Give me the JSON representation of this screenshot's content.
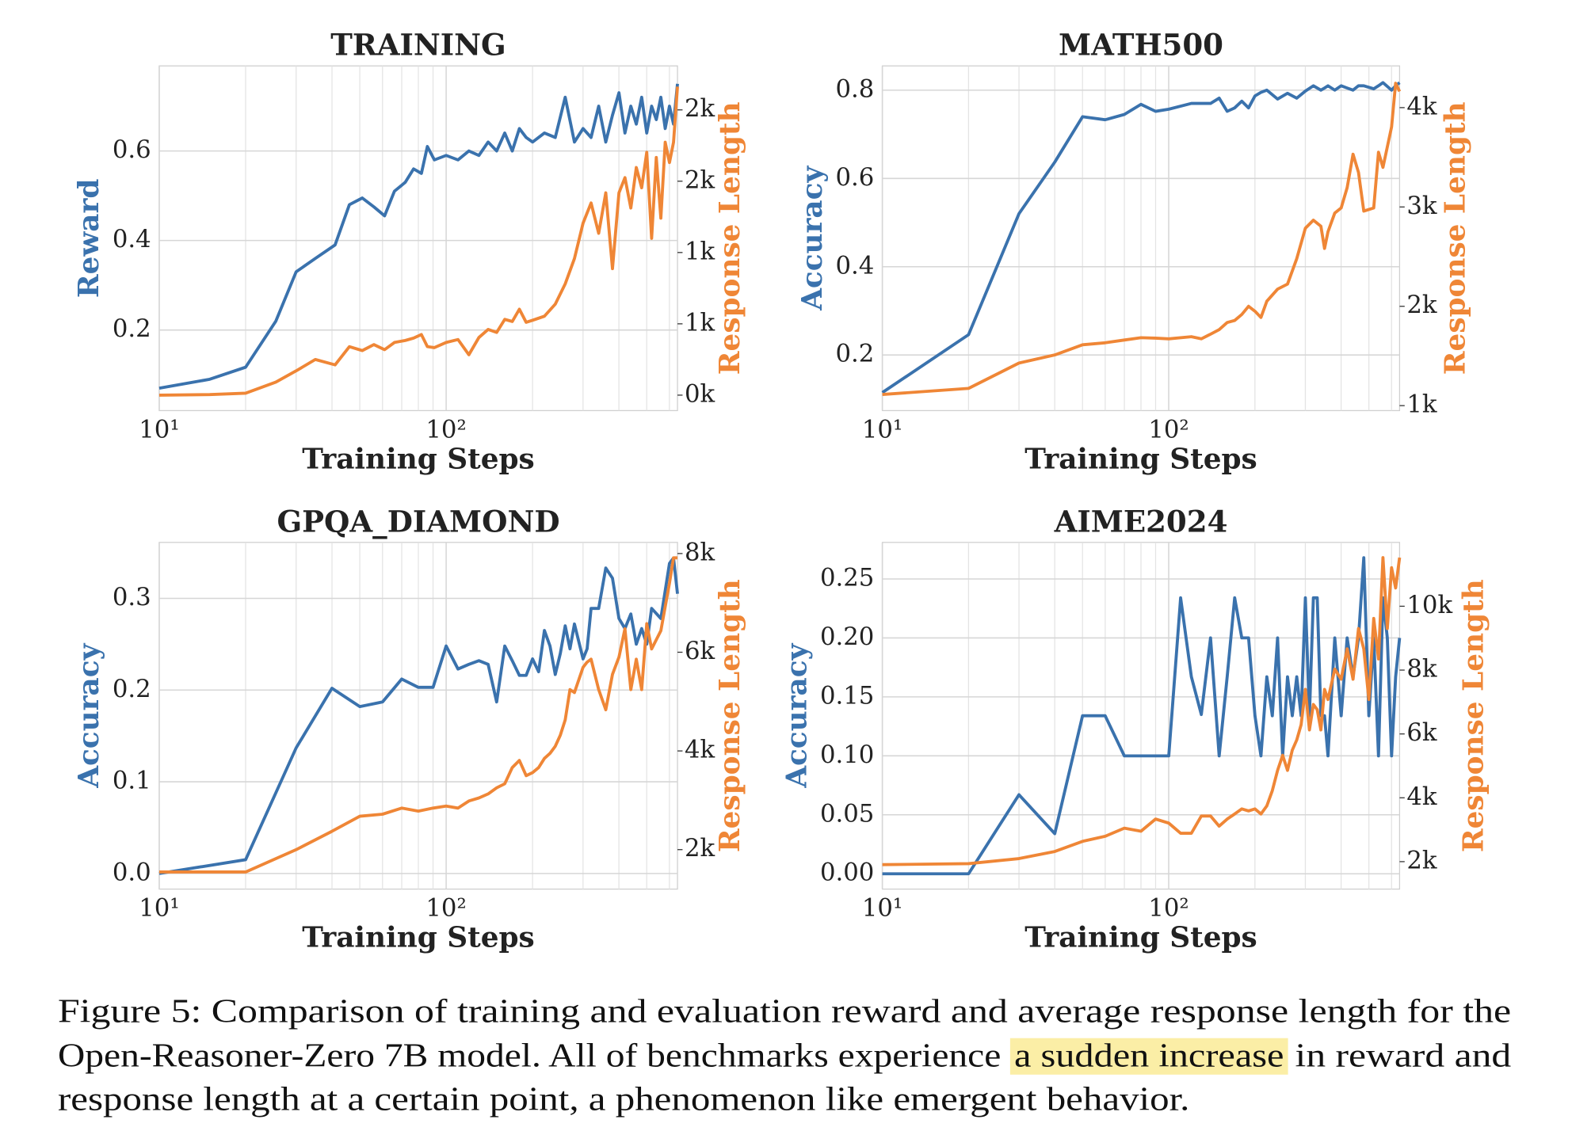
{
  "chart_data": [
    {
      "type": "line",
      "title": "TRAINING",
      "xlabel": "Training Steps",
      "xscale": "log",
      "grid": true,
      "xlim": [
        10,
        640
      ],
      "xticks": [
        {
          "value": 10,
          "label": "10¹"
        },
        {
          "value": 100,
          "label": "10²"
        }
      ],
      "xminor": [
        20,
        30,
        40,
        50,
        60,
        70,
        80,
        90,
        200,
        300,
        400,
        500,
        600
      ],
      "ylim": [
        0.02,
        0.79
      ],
      "yticks": [
        0.2,
        0.4,
        0.6
      ],
      "y2lim": [
        -130,
        2770
      ],
      "y2ticks": [
        {
          "value": 0,
          "label": "0k"
        },
        {
          "value": 600,
          "label": "1k"
        },
        {
          "value": 1200,
          "label": "1k"
        },
        {
          "value": 1800,
          "label": "2k"
        },
        {
          "value": 2400,
          "label": "2k"
        }
      ],
      "x": [
        10,
        15,
        20,
        25.5,
        30,
        35,
        41,
        46,
        51,
        56,
        61,
        66,
        72,
        77,
        82,
        86,
        91,
        100,
        110,
        120,
        130,
        140,
        150,
        160,
        170,
        180,
        190,
        200,
        220,
        240,
        260,
        280,
        300,
        320,
        340,
        360,
        380,
        400,
        420,
        440,
        460,
        480,
        500,
        520,
        540,
        560,
        580,
        600,
        620,
        640
      ],
      "series": [
        {
          "name": "Reward",
          "color": "#3a72ad",
          "values": [
            0.07,
            0.09,
            0.117,
            0.22,
            0.33,
            0.36,
            0.39,
            0.48,
            0.495,
            0.475,
            0.455,
            0.51,
            0.53,
            0.56,
            0.55,
            0.61,
            0.58,
            0.59,
            0.58,
            0.6,
            0.59,
            0.62,
            0.6,
            0.64,
            0.6,
            0.65,
            0.63,
            0.62,
            0.64,
            0.63,
            0.72,
            0.62,
            0.65,
            0.63,
            0.7,
            0.62,
            0.68,
            0.73,
            0.64,
            0.7,
            0.66,
            0.72,
            0.64,
            0.7,
            0.67,
            0.72,
            0.65,
            0.7,
            0.66,
            0.75
          ]
        },
        {
          "name": "Response Length",
          "color": "#ef8636",
          "axis": "y2",
          "values": [
            0,
            5,
            17,
            110,
            204,
            300,
            255,
            408,
            375,
            425,
            383,
            443,
            460,
            480,
            510,
            408,
            400,
            443,
            468,
            340,
            485,
            553,
            528,
            638,
            620,
            723,
            613,
            630,
            664,
            766,
            936,
            1149,
            1447,
            1617,
            1362,
            1702,
            1064,
            1702,
            1830,
            1574,
            1915,
            1745,
            2043,
            1319,
            2000,
            1489,
            2128,
            1957,
            2128,
            2596
          ]
        }
      ]
    },
    {
      "type": "line",
      "title": "MATH500",
      "xlabel": "Training Steps",
      "xscale": "log",
      "grid": true,
      "xlim": [
        10,
        640
      ],
      "xticks": [
        {
          "value": 10,
          "label": "10¹"
        },
        {
          "value": 100,
          "label": "10²"
        }
      ],
      "xminor": [
        20,
        30,
        40,
        50,
        60,
        70,
        80,
        90,
        200,
        300,
        400,
        500,
        600
      ],
      "ylim": [
        0.074,
        0.855
      ],
      "yticks": [
        0.2,
        0.4,
        0.6,
        0.8
      ],
      "y2lim": [
        950,
        4420
      ],
      "y2ticks": [
        {
          "value": 1000,
          "label": "1k"
        },
        {
          "value": 2000,
          "label": "2k"
        },
        {
          "value": 3000,
          "label": "3k"
        },
        {
          "value": 4000,
          "label": "4k"
        }
      ],
      "x": [
        10,
        20,
        30,
        40,
        50,
        60,
        70,
        80,
        90,
        100,
        120,
        130,
        140,
        150,
        160,
        170,
        180,
        190,
        200,
        210,
        220,
        240,
        260,
        280,
        300,
        320,
        340,
        350,
        360,
        380,
        400,
        420,
        440,
        460,
        480,
        520,
        540,
        560,
        600,
        620,
        640
      ],
      "series": [
        {
          "name": "Accuracy",
          "color": "#3a72ad",
          "values": [
            0.115,
            0.246,
            0.52,
            0.637,
            0.74,
            0.733,
            0.745,
            0.768,
            0.752,
            0.757,
            0.77,
            0.77,
            0.77,
            0.782,
            0.752,
            0.76,
            0.775,
            0.76,
            0.787,
            0.795,
            0.8,
            0.78,
            0.793,
            0.782,
            0.798,
            0.81,
            0.8,
            0.805,
            0.81,
            0.8,
            0.81,
            0.805,
            0.8,
            0.81,
            0.81,
            0.803,
            0.81,
            0.817,
            0.8,
            0.81,
            0.817
          ]
        },
        {
          "name": "Response Length",
          "color": "#ef8636",
          "axis": "y2",
          "values": [
            1112,
            1173,
            1429,
            1510,
            1612,
            1633,
            1660,
            1684,
            1680,
            1673,
            1694,
            1673,
            1720,
            1765,
            1837,
            1857,
            1918,
            2000,
            1950,
            1888,
            2051,
            2173,
            2224,
            2480,
            2786,
            2867,
            2806,
            2582,
            2750,
            2939,
            2990,
            3194,
            3531,
            3347,
            2959,
            2990,
            3551,
            3398,
            3806,
            4245,
            4163
          ]
        }
      ]
    },
    {
      "type": "line",
      "title": "GPQA_DIAMOND",
      "xlabel": "Training Steps",
      "xscale": "log",
      "grid": true,
      "xlim": [
        10,
        640
      ],
      "xticks": [
        {
          "value": 10,
          "label": "10¹"
        },
        {
          "value": 100,
          "label": "10²"
        }
      ],
      "xminor": [
        20,
        30,
        40,
        50,
        60,
        70,
        80,
        90,
        200,
        300,
        400,
        500,
        600
      ],
      "ylim": [
        -0.017,
        0.361
      ],
      "yticks": [
        {
          "value": 0,
          "label": "0.0"
        },
        0.1,
        0.2,
        0.3
      ],
      "y2lim": [
        1200,
        8226
      ],
      "y2ticks": [
        {
          "value": 2000,
          "label": "2k"
        },
        {
          "value": 4000,
          "label": "4k"
        },
        {
          "value": 6000,
          "label": "6k"
        },
        {
          "value": 8000,
          "label": "8k"
        }
      ],
      "x": [
        10,
        20,
        30,
        40,
        50,
        60,
        70,
        80,
        90,
        100,
        110,
        120,
        130,
        140,
        150,
        160,
        170,
        180,
        190,
        200,
        210,
        220,
        230,
        240,
        250,
        260,
        270,
        280,
        300,
        310,
        320,
        340,
        360,
        380,
        400,
        420,
        440,
        460,
        480,
        500,
        520,
        560,
        600,
        620,
        640
      ],
      "series": [
        {
          "name": "Accuracy",
          "color": "#3a72ad",
          "values": [
            0,
            0.015,
            0.137,
            0.202,
            0.182,
            0.187,
            0.212,
            0.203,
            0.203,
            0.248,
            0.223,
            0.228,
            0.232,
            0.228,
            0.187,
            0.248,
            0.232,
            0.216,
            0.216,
            0.234,
            0.22,
            0.265,
            0.248,
            0.217,
            0.24,
            0.27,
            0.245,
            0.272,
            0.234,
            0.245,
            0.289,
            0.289,
            0.333,
            0.322,
            0.278,
            0.267,
            0.283,
            0.25,
            0.267,
            0.25,
            0.289,
            0.278,
            0.338,
            0.344,
            0.305
          ]
        },
        {
          "name": "Response Length",
          "color": "#ef8636",
          "axis": "y2",
          "values": [
            1548,
            1548,
            2000,
            2370,
            2678,
            2719,
            2842,
            2780,
            2842,
            2883,
            2842,
            2986,
            3047,
            3129,
            3253,
            3335,
            3663,
            3807,
            3499,
            3561,
            3663,
            3848,
            3951,
            4094,
            4320,
            4628,
            5244,
            5183,
            5696,
            5800,
            5860,
            5244,
            4834,
            5552,
            5901,
            6476,
            5244,
            5860,
            5244,
            6579,
            6066,
            6435,
            7400,
            7914,
            7914
          ]
        }
      ]
    },
    {
      "type": "line",
      "title": "AIME2024",
      "xlabel": "Training Steps",
      "xscale": "log",
      "grid": true,
      "xlim": [
        10,
        640
      ],
      "xticks": [
        {
          "value": 10,
          "label": "10¹"
        },
        {
          "value": 100,
          "label": "10²"
        }
      ],
      "xminor": [
        20,
        30,
        40,
        50,
        60,
        70,
        80,
        90,
        200,
        300,
        400,
        500,
        600
      ],
      "ylim": [
        -0.013,
        0.281
      ],
      "yticks": [
        {
          "value": 0,
          "label": "0.00"
        },
        {
          "value": 0.05,
          "label": "0.05"
        },
        {
          "value": 0.1,
          "label": "0.10"
        },
        {
          "value": 0.15,
          "label": "0.15"
        },
        {
          "value": 0.2,
          "label": "0.20"
        },
        {
          "value": 0.25,
          "label": "0.25"
        }
      ],
      "y2lim": [
        1140,
        12000
      ],
      "y2ticks": [
        {
          "value": 2000,
          "label": "2k"
        },
        {
          "value": 4000,
          "label": "4k"
        },
        {
          "value": 6000,
          "label": "6k"
        },
        {
          "value": 8000,
          "label": "8k"
        },
        {
          "value": 10000,
          "label": "10k"
        }
      ],
      "x": [
        10,
        20,
        30,
        40,
        50,
        60,
        70,
        80,
        90,
        100,
        110,
        120,
        130,
        140,
        150,
        160,
        170,
        180,
        190,
        200,
        210,
        220,
        230,
        240,
        250,
        260,
        270,
        280,
        290,
        300,
        310,
        320,
        330,
        340,
        350,
        360,
        380,
        400,
        420,
        440,
        460,
        480,
        500,
        520,
        540,
        560,
        580,
        600,
        620,
        640
      ],
      "series": [
        {
          "name": "Accuracy",
          "color": "#3a72ad",
          "values": [
            0,
            0,
            0.067,
            0.034,
            0.134,
            0.134,
            0.1,
            0.1,
            0.1,
            0.1,
            0.234,
            0.167,
            0.135,
            0.2,
            0.1,
            0.167,
            0.234,
            0.2,
            0.2,
            0.134,
            0.1,
            0.167,
            0.134,
            0.2,
            0.1,
            0.167,
            0.134,
            0.167,
            0.134,
            0.234,
            0.134,
            0.234,
            0.234,
            0.134,
            0.134,
            0.1,
            0.2,
            0.134,
            0.2,
            0.167,
            0.2,
            0.268,
            0.134,
            0.2,
            0.1,
            0.234,
            0.2,
            0.1,
            0.167,
            0.2
          ]
        },
        {
          "name": "Response Length",
          "color": "#ef8636",
          "axis": "y2",
          "values": [
            1905,
            1937,
            2095,
            2317,
            2635,
            2794,
            3048,
            2952,
            3333,
            3206,
            2889,
            2889,
            3429,
            3429,
            3111,
            3333,
            3492,
            3651,
            3587,
            3651,
            3492,
            3746,
            4222,
            4857,
            5333,
            4857,
            5492,
            5810,
            6286,
            7397,
            6127,
            6921,
            6762,
            6127,
            7397,
            7079,
            8032,
            7714,
            8667,
            7714,
            9302,
            8667,
            7079,
            9619,
            8349,
            11524,
            9302,
            11206,
            10571,
            11524
          ]
        }
      ]
    }
  ],
  "caption": {
    "line1": "Figure 5: Comparison of training and evaluation reward and average response length for the",
    "line2_before": "Open-Reasoner-Zero 7B model.  All of benchmarks experience",
    "highlight": "a sudden increase",
    "line2_after": "in reward and",
    "line3": "response length at a certain point, a phenomenon like emergent behavior."
  }
}
